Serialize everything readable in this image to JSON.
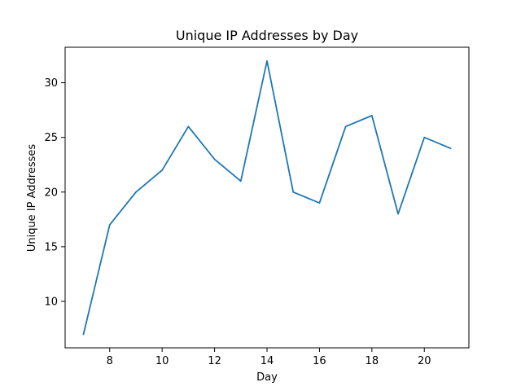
{
  "chart_data": {
    "type": "line",
    "title": "Unique IP Addresses by Day",
    "xlabel": "Day",
    "ylabel": "Unique IP Addresses",
    "x": [
      7,
      8,
      9,
      10,
      11,
      12,
      13,
      14,
      15,
      16,
      17,
      18,
      19,
      20,
      21
    ],
    "series": [
      {
        "values": [
          7,
          17,
          20,
          22,
          26,
          23,
          21,
          32,
          20,
          19,
          26,
          27,
          18,
          25,
          24
        ],
        "color": "#1f77b4"
      }
    ],
    "xlim": [
      6.3,
      21.7
    ],
    "ylim": [
      5.75,
      33.25
    ],
    "xticks": [
      8,
      10,
      12,
      14,
      16,
      18,
      20
    ],
    "yticks": [
      10,
      15,
      20,
      25,
      30
    ],
    "grid": false,
    "legend": "none"
  }
}
